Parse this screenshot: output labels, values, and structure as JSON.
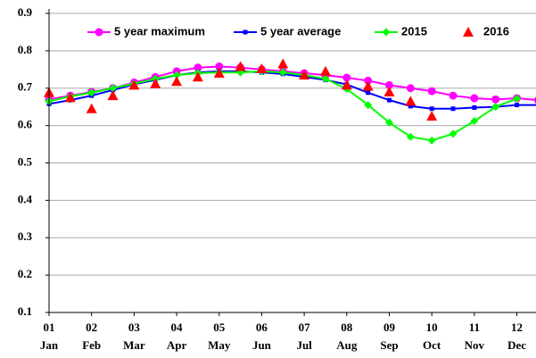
{
  "chart_data": {
    "type": "line",
    "x": [
      1,
      1.5,
      2,
      2.5,
      3,
      3.5,
      4,
      4.5,
      5,
      5.5,
      6,
      6.5,
      7,
      7.5,
      8,
      8.5,
      9,
      9.5,
      10,
      10.5,
      11,
      11.5,
      12,
      12.5
    ],
    "xlim": [
      1,
      12.45
    ],
    "xticks": [
      {
        "value": 1,
        "label": "01"
      },
      {
        "value": 2,
        "label": "02"
      },
      {
        "value": 3,
        "label": "03"
      },
      {
        "value": 4,
        "label": "04"
      },
      {
        "value": 5,
        "label": "05"
      },
      {
        "value": 6,
        "label": "06"
      },
      {
        "value": 7,
        "label": "07"
      },
      {
        "value": 8,
        "label": "08"
      },
      {
        "value": 9,
        "label": "09"
      },
      {
        "value": 10,
        "label": "10"
      },
      {
        "value": 11,
        "label": "11"
      },
      {
        "value": 12,
        "label": "12"
      }
    ],
    "x_sublabels": [
      "Jan",
      "Feb",
      "Mar",
      "Apr",
      "May",
      "Jun",
      "Jul",
      "Aug",
      "Sep",
      "Oct",
      "Nov",
      "Dec"
    ],
    "ylim": [
      0.1,
      0.9
    ],
    "yticks": [
      0.1,
      0.2,
      0.3,
      0.4,
      0.5,
      0.6,
      0.7,
      0.8,
      0.9
    ],
    "grid": true,
    "series": [
      {
        "name": "5 year maximum",
        "color": "#ff00ff",
        "marker": "circle",
        "line": true,
        "values": [
          0.67,
          0.68,
          0.69,
          0.7,
          0.715,
          0.73,
          0.745,
          0.755,
          0.758,
          0.755,
          0.75,
          0.745,
          0.74,
          0.735,
          0.728,
          0.72,
          0.708,
          0.7,
          0.692,
          0.68,
          0.673,
          0.67,
          0.673,
          0.668
        ]
      },
      {
        "name": "5 year average",
        "color": "#0000ff",
        "marker": "square",
        "line": true,
        "values": [
          0.658,
          0.668,
          0.68,
          0.695,
          0.71,
          0.722,
          0.735,
          0.742,
          0.745,
          0.745,
          0.742,
          0.738,
          0.73,
          0.722,
          0.71,
          0.688,
          0.668,
          0.652,
          0.645,
          0.645,
          0.648,
          0.65,
          0.655,
          0.655
        ]
      },
      {
        "name": "2015",
        "color": "#00ff00",
        "marker": "diamond",
        "line": true,
        "values": [
          0.665,
          0.678,
          0.688,
          0.7,
          0.712,
          0.725,
          0.735,
          0.74,
          0.742,
          0.742,
          0.745,
          0.742,
          0.735,
          0.725,
          0.698,
          0.655,
          0.608,
          0.57,
          0.56,
          0.578,
          0.612,
          0.65,
          0.672,
          null
        ]
      },
      {
        "name": "2016",
        "color": "#ff0000",
        "marker": "triangle",
        "line": false,
        "values": [
          0.688,
          0.675,
          0.645,
          0.68,
          0.708,
          0.712,
          0.718,
          0.73,
          0.74,
          0.758,
          0.752,
          0.765,
          0.735,
          0.745,
          0.708,
          0.705,
          0.69,
          0.665,
          0.625,
          null,
          null,
          null,
          null,
          null
        ]
      }
    ]
  }
}
